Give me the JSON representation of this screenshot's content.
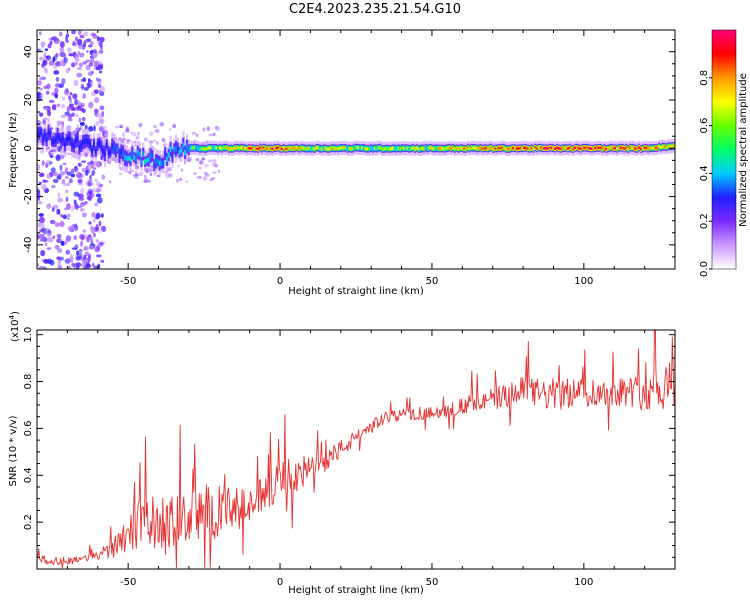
{
  "figure": {
    "title": "C2E4.2023.235.21.54.G10"
  },
  "chart_data": [
    {
      "type": "heatmap",
      "xlabel": "Height of straight line (km)",
      "ylabel": "Frequency (Hz)",
      "xlim": [
        -80,
        130
      ],
      "ylim": [
        -50,
        49
      ],
      "x_ticks": [
        -50,
        0,
        50,
        100
      ],
      "x_tick_labels": [
        "-50",
        "0",
        "50",
        "100"
      ],
      "y_ticks": [
        -40,
        -20,
        0,
        20,
        40
      ],
      "y_tick_labels": [
        "-40",
        "-20",
        "0",
        "20",
        "40"
      ],
      "grid": false,
      "colormap": [
        "#ffffff",
        "#cc99ff",
        "#7a2bff",
        "#2020ff",
        "#00ccff",
        "#00ff66",
        "#66ff00",
        "#ffff00",
        "#ff9900",
        "#ff0000",
        "#ff0077"
      ],
      "colorbar": {
        "label": "Normalized spectral amplitude",
        "range": [
          0,
          1
        ],
        "ticks": [
          0.0,
          0.2,
          0.4,
          0.6,
          0.8
        ],
        "tick_labels": [
          "0.0",
          "0.2",
          "0.4",
          "0.6",
          "0.8"
        ]
      },
      "ridge": {
        "description_free": true,
        "center_frequency": 0,
        "x": [
          -78,
          -70,
          -62,
          -55,
          -50,
          -45,
          -40,
          -35,
          -30,
          -20,
          -10,
          0,
          10,
          20,
          30,
          40,
          50,
          60,
          70,
          80,
          90,
          100,
          110,
          120,
          130
        ],
        "center_offset": [
          5,
          3,
          1,
          -1,
          -3,
          -4,
          -6,
          -1,
          0,
          0,
          0,
          0,
          0,
          0,
          0,
          0,
          0,
          0,
          0,
          0,
          0,
          0,
          0,
          0,
          1
        ],
        "peak_amplitude": [
          0.3,
          0.3,
          0.35,
          0.4,
          0.5,
          0.55,
          0.5,
          0.5,
          0.55,
          0.7,
          0.85,
          0.9,
          0.7,
          0.7,
          0.65,
          0.65,
          0.7,
          0.8,
          0.8,
          0.85,
          0.9,
          0.9,
          0.9,
          0.85,
          0.7
        ]
      }
    },
    {
      "type": "line",
      "xlabel": "Height of straight line (km)",
      "ylabel": "SNR (10 * v/v)",
      "y_multiplier_label": "(x10",
      "y_multiplier_exp": "4",
      "xlim": [
        -80,
        130
      ],
      "ylim": [
        0,
        1.02
      ],
      "x_ticks": [
        -50,
        0,
        50,
        100
      ],
      "x_tick_labels": [
        "-50",
        "0",
        "50",
        "100"
      ],
      "y_ticks": [
        0.2,
        0.4,
        0.6,
        0.8,
        1.0
      ],
      "y_tick_labels": [
        "0.2",
        "0.4",
        "0.6",
        "0.8",
        "1.0"
      ],
      "grid": false,
      "series": [
        {
          "color": "#e53030",
          "x": [
            -80,
            -75,
            -70,
            -65,
            -60,
            -55,
            -50,
            -45,
            -40,
            -35,
            -30,
            -25,
            -20,
            -15,
            -10,
            -5,
            0,
            5,
            10,
            15,
            20,
            25,
            30,
            35,
            40,
            45,
            50,
            55,
            60,
            65,
            70,
            75,
            80,
            85,
            90,
            95,
            100,
            105,
            110,
            115,
            120,
            125,
            130
          ],
          "y": [
            0.04,
            0.03,
            0.03,
            0.04,
            0.05,
            0.08,
            0.14,
            0.17,
            0.16,
            0.17,
            0.19,
            0.2,
            0.21,
            0.22,
            0.24,
            0.3,
            0.35,
            0.38,
            0.4,
            0.45,
            0.5,
            0.55,
            0.6,
            0.64,
            0.65,
            0.65,
            0.66,
            0.67,
            0.68,
            0.7,
            0.71,
            0.72,
            0.74,
            0.73,
            0.72,
            0.73,
            0.74,
            0.73,
            0.74,
            0.74,
            0.73,
            0.75,
            0.76
          ],
          "noise": [
            0.02,
            0.02,
            0.02,
            0.02,
            0.02,
            0.06,
            0.12,
            0.14,
            0.14,
            0.14,
            0.14,
            0.16,
            0.14,
            0.12,
            0.1,
            0.1,
            0.1,
            0.1,
            0.08,
            0.06,
            0.05,
            0.04,
            0.04,
            0.03,
            0.03,
            0.03,
            0.03,
            0.04,
            0.05,
            0.05,
            0.06,
            0.07,
            0.08,
            0.08,
            0.09,
            0.08,
            0.08,
            0.08,
            0.08,
            0.08,
            0.1,
            0.14,
            0.14
          ]
        }
      ]
    }
  ]
}
